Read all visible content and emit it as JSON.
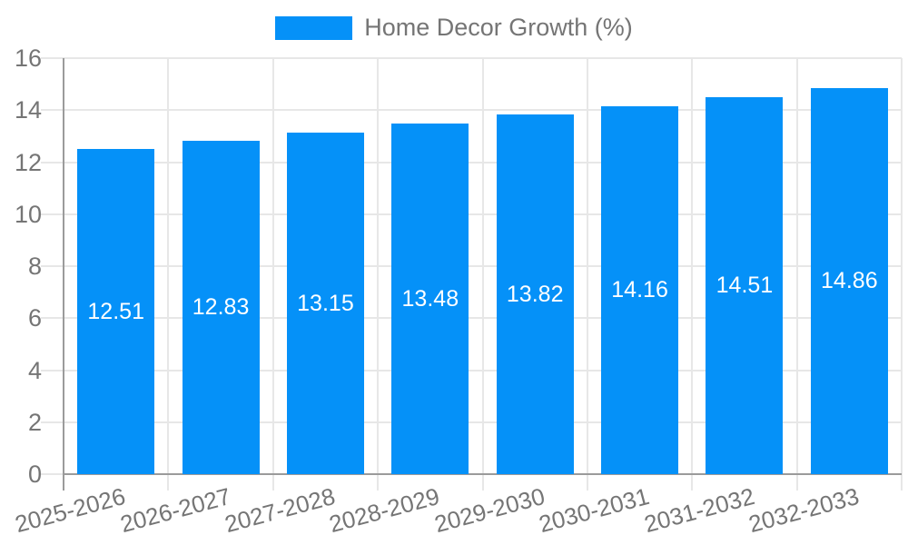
{
  "chart_data": {
    "type": "bar",
    "title": "",
    "series_name": "Home Decor Growth (%)",
    "categories": [
      "2025-2026",
      "2026-2027",
      "2027-2028",
      "2028-2029",
      "2029-2030",
      "2030-2031",
      "2031-2032",
      "2032-2033"
    ],
    "values": [
      12.51,
      12.83,
      13.15,
      13.48,
      13.82,
      14.16,
      14.51,
      14.86
    ],
    "bar_labels": [
      "12.51",
      "12.83",
      "13.15",
      "13.48",
      "13.82",
      "14.16",
      "14.51",
      "14.86"
    ],
    "xlabel": "",
    "ylabel": "",
    "ylim": [
      0,
      16
    ],
    "yticks": [
      0,
      2,
      4,
      6,
      8,
      10,
      12,
      14,
      16
    ],
    "grid": true,
    "legend_position": "top"
  },
  "colors": {
    "bar": "#0591f8",
    "bar_label": "#ffffff",
    "axis": "#9b9b9b",
    "grid": "#e7e7e7",
    "text": "#757575",
    "background": "#ffffff"
  }
}
